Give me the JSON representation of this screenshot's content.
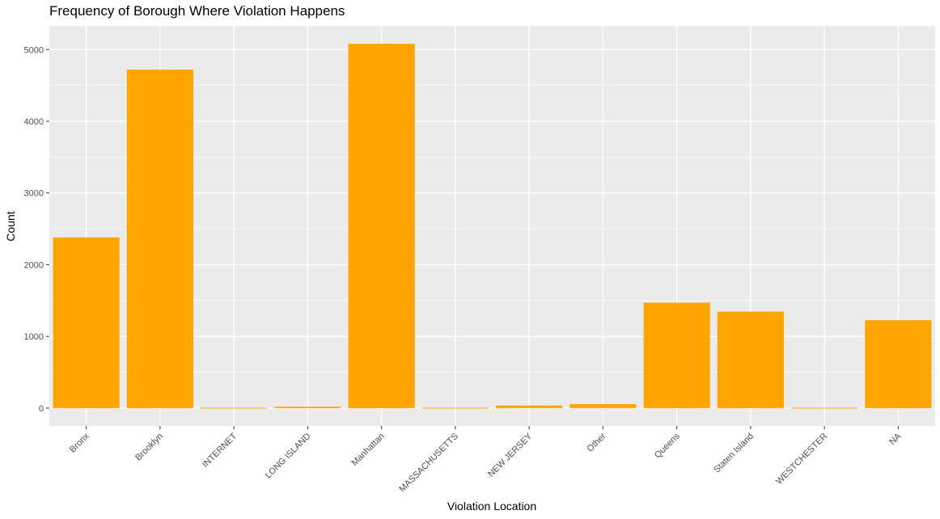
{
  "chart_data": {
    "type": "bar",
    "title": "Frequency of Borough Where Violation Happens",
    "xlabel": "Violation Location",
    "ylabel": "Count",
    "categories": [
      "Bronx",
      "Brooklyn",
      "INTERNET",
      "LONG ISLAND",
      "Manhattan",
      "MASSACHUSETTS",
      "NEW JERSEY",
      "Other",
      "Queens",
      "Staten Island",
      "WESTCHESTER",
      "NA"
    ],
    "values": [
      2380,
      4720,
      5,
      20,
      5080,
      5,
      35,
      55,
      1470,
      1345,
      5,
      1225
    ],
    "yticks": [
      0,
      1000,
      2000,
      3000,
      4000,
      5000
    ],
    "ylim": [
      -250,
      5330
    ],
    "grid": true,
    "bar_color": "#FFA500",
    "panel_color": "#EBEBEB",
    "grid_color": "#FFFFFF"
  }
}
